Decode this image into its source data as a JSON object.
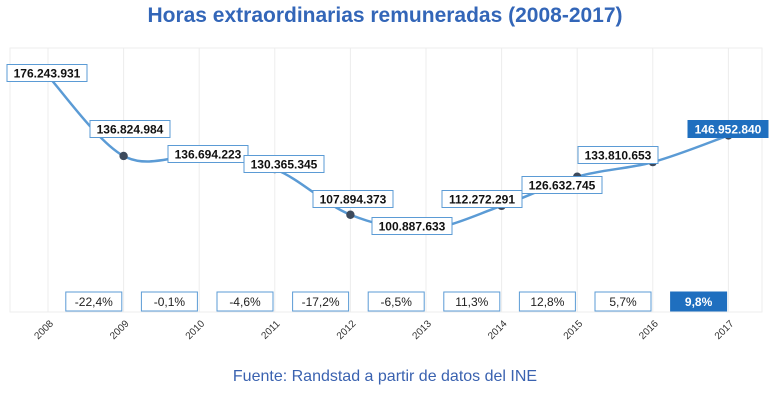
{
  "chart_data": {
    "type": "line",
    "title": "Horas extraordinarias remuneradas (2008-2017)",
    "source": "Fuente: Randstad a partir de datos del INE",
    "categories": [
      "2008",
      "2009",
      "2010",
      "2011",
      "2012",
      "2013",
      "2014",
      "2015",
      "2016",
      "2017"
    ],
    "values": [
      176243931,
      136824984,
      136694223,
      130365345,
      107894373,
      100887633,
      112272291,
      126632745,
      133810653,
      146952840
    ],
    "value_labels": [
      "176.243.931",
      "136.824.984",
      "136.694.223",
      "130.365.345",
      "107.894.373",
      "100.887.633",
      "112.272.291",
      "126.632.745",
      "133.810.653",
      "146.952.840"
    ],
    "change_labels": [
      "-22,4%",
      "-0,1%",
      "-4,6%",
      "-17,2%",
      "-6,5%",
      "11,3%",
      "12,8%",
      "5,7%",
      "9,8%"
    ],
    "highlight_index": 9,
    "highlight_change_index": 8,
    "ylim": [
      60000000,
      190000000
    ],
    "grid": "vertical",
    "colors": {
      "line": "#5b9bd5",
      "marker": "#3d4a5c",
      "label_border": "#5b9bd5",
      "highlight": "#1f6fbf",
      "title": "#3366b8"
    }
  }
}
